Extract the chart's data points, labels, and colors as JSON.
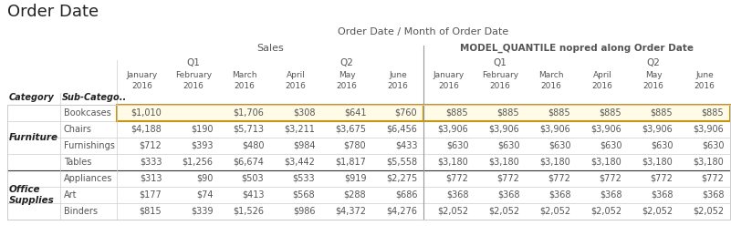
{
  "title": "Order Date",
  "main_header": "Order Date / Month of Order Date",
  "section1_header": "Sales",
  "section2_header": "MODEL_QUANTILE nopred along Order Date",
  "q1_label": "Q1",
  "q2_label": "Q2",
  "months": [
    "January",
    "February",
    "March",
    "April",
    "May",
    "June"
  ],
  "year": "2016",
  "col_headers": [
    "Category",
    "Sub-Catego.."
  ],
  "subcategories": [
    "Bookcases",
    "Chairs",
    "Furnishings",
    "Tables",
    "Appliances",
    "Art",
    "Binders"
  ],
  "sales_data": [
    [
      "$1,010",
      "",
      "$1,706",
      "$308",
      "$641",
      "$760"
    ],
    [
      "$4,188",
      "$190",
      "$5,713",
      "$3,211",
      "$3,675",
      "$6,456"
    ],
    [
      "$712",
      "$393",
      "$480",
      "$984",
      "$780",
      "$433"
    ],
    [
      "$333",
      "$1,256",
      "$6,674",
      "$3,442",
      "$1,817",
      "$5,558"
    ],
    [
      "$313",
      "$90",
      "$503",
      "$533",
      "$919",
      "$2,275"
    ],
    [
      "$177",
      "$74",
      "$413",
      "$568",
      "$288",
      "$686"
    ],
    [
      "$815",
      "$339",
      "$1,526",
      "$986",
      "$4,372",
      "$4,276"
    ]
  ],
  "model_data": [
    [
      "$885",
      "$885",
      "$885",
      "$885",
      "$885",
      "$885"
    ],
    [
      "$3,906",
      "$3,906",
      "$3,906",
      "$3,906",
      "$3,906",
      "$3,906"
    ],
    [
      "$630",
      "$630",
      "$630",
      "$630",
      "$630",
      "$630"
    ],
    [
      "$3,180",
      "$3,180",
      "$3,180",
      "$3,180",
      "$3,180",
      "$3,180"
    ],
    [
      "$772",
      "$772",
      "$772",
      "$772",
      "$772",
      "$772"
    ],
    [
      "$368",
      "$368",
      "$368",
      "$368",
      "$368",
      "$368"
    ],
    [
      "$2,052",
      "$2,052",
      "$2,052",
      "$2,052",
      "$2,052",
      "$2,052"
    ]
  ],
  "highlight_sales_color": "#FFFBE6",
  "highlight_model_color": "#FFFBE6",
  "highlight_border_color": "#C8960C",
  "bg_color": "#ffffff",
  "text_color": "#555555",
  "cat_text_color": "#222222",
  "title_color": "#222222",
  "grid_color": "#cccccc",
  "divider_color": "#999999",
  "cat_divider_color": "#333333"
}
